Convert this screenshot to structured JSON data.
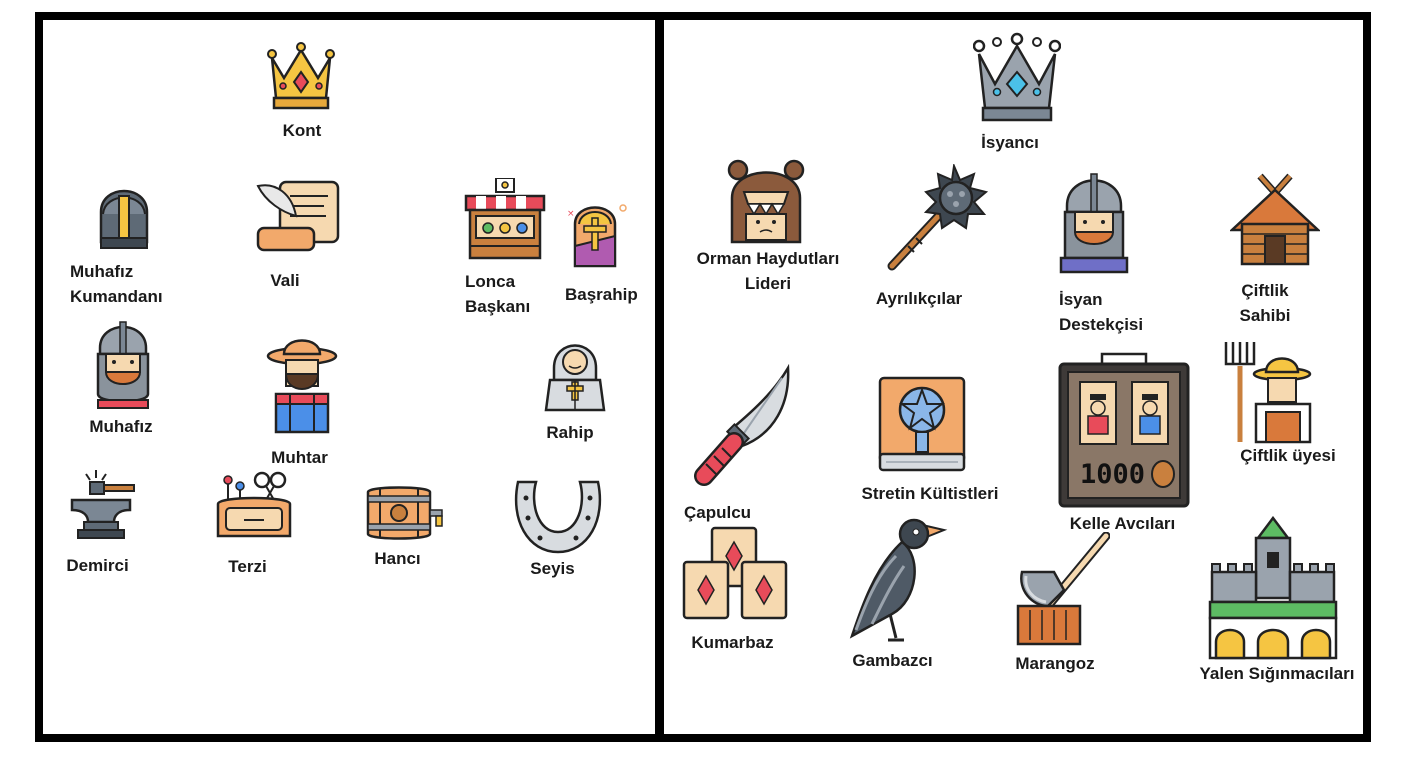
{
  "left_panel": {
    "kont": "Kont",
    "muhafiz_kumandani": "Muhafız\nKumandanı",
    "vali": "Vali",
    "lonca_baskani": "Lonca\nBaşkanı",
    "basrahip": "Başrahip",
    "muhafiz": "Muhafız",
    "muhtar": "Muhtar",
    "rahip": "Rahip",
    "demirci": "Demirci",
    "terzi": "Terzi",
    "hanci": "Hancı",
    "seyis": "Seyis"
  },
  "right_panel": {
    "isyanci": "İsyancı",
    "orman_haydutlari_lideri": "Orman Haydutları\nLideri",
    "ayrilikcilar": "Ayrılıkçılar",
    "isyan_destekcisi": "İsyan\nDestekçisi",
    "ciftlik_sahibi": "Çiftlik\nSahibi",
    "capulcu": "Çapulcu",
    "stretin_kultistleri": "Stretin Kültistleri",
    "kelle_avcilari": "Kelle Avcıları",
    "kelle_bounty": "1000",
    "ciftlik_uyesi": "Çiftlik üyesi",
    "kumarbaz": "Kumarbaz",
    "gambazci": "Gambazcı",
    "marangoz": "Marangoz",
    "yalen_siginmacilari": "Yalen Sığınmacıları"
  },
  "icons": {
    "kont": "gold-crown-icon",
    "muhafiz_kumandani": "knight-helmet-icon",
    "vali": "scroll-quill-icon",
    "lonca_baskani": "market-stall-icon",
    "basrahip": "stained-glass-window-icon",
    "muhafiz": "bearded-guard-icon",
    "muhtar": "farmer-hat-icon",
    "rahip": "hooded-monk-icon",
    "demirci": "anvil-hammer-icon",
    "terzi": "sewing-kit-icon",
    "hanci": "barrel-icon",
    "seyis": "horseshoe-icon",
    "isyanci": "silver-crown-icon",
    "orman_haydutlari_lideri": "bear-hood-icon",
    "ayrilikcilar": "morning-star-mace-icon",
    "isyan_destekcisi": "chainmail-guard-icon",
    "ciftlik_sahibi": "wooden-house-icon",
    "capulcu": "knife-icon",
    "stretin_kultistleri": "pentagram-book-icon",
    "kelle_avcilari": "wanted-board-icon",
    "ciftlik_uyesi": "farmer-pitchfork-icon",
    "kumarbaz": "playing-cards-icon",
    "gambazci": "crow-icon",
    "marangoz": "axe-stump-icon",
    "yalen_siginmacilari": "castle-icon"
  },
  "colors": {
    "border": "#000000",
    "gold": "#F5C542",
    "silver": "#9AA3AD",
    "label": "#1a1a1a"
  }
}
